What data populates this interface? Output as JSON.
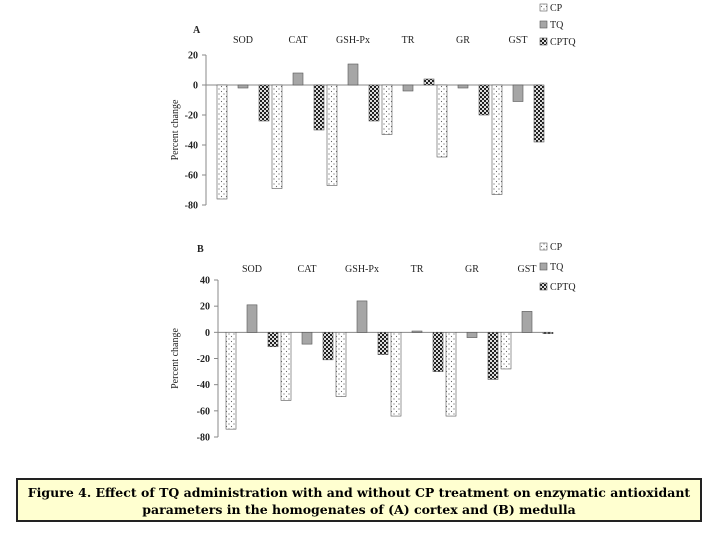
{
  "figure": {
    "caption_line1": "Figure 4. Effect of TQ administration with and without CP treatment on  enzymatic antioxidant",
    "caption_line2": "parameters in the homogenates of  (A) cortex and (B) medulla"
  },
  "chart_data": [
    {
      "type": "bar",
      "panel": "A",
      "title": "",
      "categories": [
        "SOD",
        "CAT",
        "GSH-Px",
        "TR",
        "GR",
        "GST"
      ],
      "series": [
        {
          "name": "CP",
          "values": [
            -76,
            -69,
            -67,
            -33,
            -48,
            -73
          ]
        },
        {
          "name": "TQ",
          "values": [
            -2,
            8,
            14,
            -4,
            -2,
            -11
          ]
        },
        {
          "name": "CPTQ",
          "values": [
            -24,
            -30,
            -24,
            4,
            -20,
            -38
          ]
        }
      ],
      "xlabel": "",
      "ylabel": "Percent change",
      "ylim": [
        -80,
        20
      ],
      "yticks": [
        20,
        0,
        -20,
        -40,
        -60,
        -80
      ],
      "legend": "top-right",
      "grid": false
    },
    {
      "type": "bar",
      "panel": "B",
      "title": "",
      "categories": [
        "SOD",
        "CAT",
        "GSH-Px",
        "TR",
        "GR",
        "GST"
      ],
      "series": [
        {
          "name": "CP",
          "values": [
            -74,
            -52,
            -49,
            -64,
            -64,
            -28
          ]
        },
        {
          "name": "TQ",
          "values": [
            21,
            -9,
            24,
            1,
            -4,
            16
          ]
        },
        {
          "name": "CPTQ",
          "values": [
            -11,
            -21,
            -17,
            -30,
            -36,
            -1
          ]
        }
      ],
      "xlabel": "",
      "ylabel": "Percent change",
      "ylim": [
        -80,
        40
      ],
      "yticks": [
        40,
        20,
        0,
        -20,
        -40,
        -60,
        -80
      ],
      "legend": "top-right",
      "grid": false
    }
  ],
  "colors": {
    "cp_fill": "#ffffff",
    "tq_fill": "#a6a6a6",
    "cptq_fill": "#4a4a4a",
    "axis": "#888888",
    "text": "#222222"
  }
}
